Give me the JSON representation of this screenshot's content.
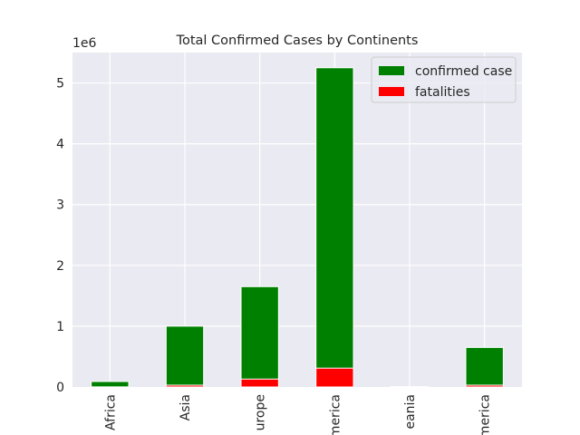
{
  "chart_data": {
    "type": "bar",
    "stacked": true,
    "title": "Total Confirmed Cases by Continents",
    "offset_label": "1e6",
    "categories": [
      "Africa",
      "Asia",
      "Europe",
      "North America",
      "Oceania",
      "South America"
    ],
    "visible_category_labels": [
      "Africa",
      "Asia",
      "urope",
      "merica",
      "eania",
      "merica"
    ],
    "series": [
      {
        "name": "confirmed case",
        "color": "#008000",
        "values": [
          0.09,
          1.0,
          1.65,
          5.25,
          0.005,
          0.65
        ]
      },
      {
        "name": "fatalities",
        "color": "#ff0000",
        "values": [
          0.002,
          0.03,
          0.13,
          0.31,
          0.0002,
          0.03
        ]
      }
    ],
    "ylim": [
      0,
      5.5
    ],
    "yticks": [
      0,
      1,
      2,
      3,
      4,
      5
    ],
    "ylabel": "",
    "xlabel": "",
    "grid": true,
    "legend": "upper right"
  },
  "colors": {
    "axes_background": "#eaeaf2",
    "grid": "#ffffff"
  }
}
